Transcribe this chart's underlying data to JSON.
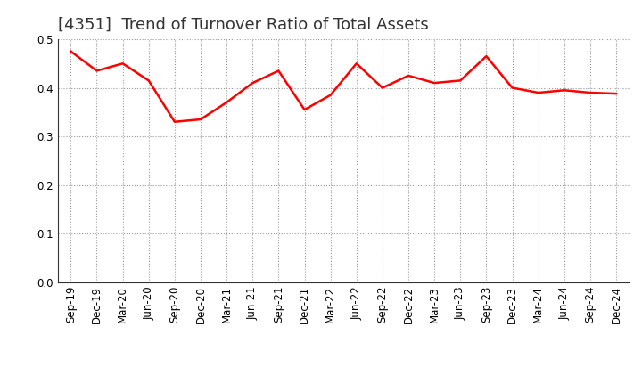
{
  "title": "[4351]  Trend of Turnover Ratio of Total Assets",
  "x_labels": [
    "Sep-19",
    "Dec-19",
    "Mar-20",
    "Jun-20",
    "Sep-20",
    "Dec-20",
    "Mar-21",
    "Jun-21",
    "Sep-21",
    "Dec-21",
    "Mar-22",
    "Jun-22",
    "Sep-22",
    "Dec-22",
    "Mar-23",
    "Jun-23",
    "Sep-23",
    "Dec-23",
    "Mar-24",
    "Jun-24",
    "Sep-24",
    "Dec-24"
  ],
  "y_values": [
    0.475,
    0.435,
    0.45,
    0.415,
    0.33,
    0.335,
    0.37,
    0.41,
    0.435,
    0.355,
    0.385,
    0.45,
    0.4,
    0.425,
    0.41,
    0.415,
    0.465,
    0.4,
    0.39,
    0.395,
    0.39,
    0.388
  ],
  "line_color": "#FF0000",
  "line_width": 1.8,
  "ylim": [
    0.0,
    0.5
  ],
  "yticks": [
    0.0,
    0.1,
    0.2,
    0.3,
    0.4,
    0.5
  ],
  "grid_color": "#999999",
  "background_color": "#ffffff",
  "title_fontsize": 13,
  "tick_fontsize": 8.5,
  "title_color": "#333333"
}
